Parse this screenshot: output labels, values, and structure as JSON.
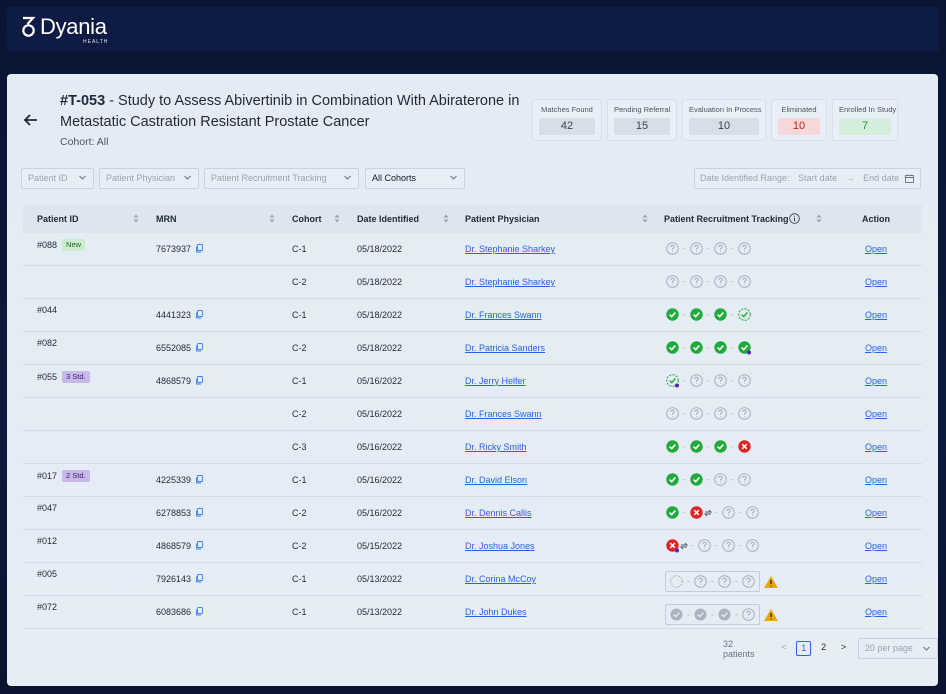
{
  "brand": {
    "name": "Dyania",
    "sub": "HEALTH"
  },
  "study": {
    "code": "#T-053",
    "title_rest": " - Study to Assess Abivertinib in Combination With Abiraterone in Metastatic Castration Resistant Prostate Cancer",
    "cohort_line": "Cohort: All"
  },
  "stats": [
    {
      "label": "Matches Found",
      "value": "42",
      "tone": "neutral"
    },
    {
      "label": "Pending Referral",
      "value": "15",
      "tone": "neutral"
    },
    {
      "label": "Evaluation In Process",
      "value": "10",
      "tone": "neutral"
    },
    {
      "label": "Eliminated",
      "value": "10",
      "tone": "red"
    },
    {
      "label": "Enrolled In Study",
      "value": "7",
      "tone": "green"
    }
  ],
  "filters": {
    "patient_id": "Patient ID",
    "physician": "Patient Physician",
    "tracking": "Patient Recruitment Tracking",
    "cohorts": "All Cohorts",
    "date_label": "Date Identified Range:",
    "start": "Start date",
    "arrow": "→",
    "end": "End date"
  },
  "columns": {
    "patient_id": "Patient ID",
    "mrn": "MRN",
    "cohort": "Cohort",
    "date": "Date Identified",
    "physician": "Patient Physician",
    "tracking": "Patient Recruitment Tracking",
    "action": "Action"
  },
  "rows": [
    {
      "pid": "#088",
      "badge": "New",
      "badge_type": "new",
      "mrn": "7673937",
      "cohort": "C-1",
      "date": "05/18/2022",
      "physician": "Dr. Stephanie Sharkey",
      "track": [
        "q",
        "q",
        "q",
        "q"
      ],
      "action": "Open"
    },
    {
      "pid": "",
      "badge": "",
      "badge_type": "",
      "mrn": "",
      "cohort": "C-2",
      "date": "05/18/2022",
      "physician": "Dr. Stephanie Sharkey",
      "track": [
        "q",
        "q",
        "q",
        "q"
      ],
      "action": "Open"
    },
    {
      "pid": "#044",
      "badge": "",
      "badge_type": "",
      "mrn": "4441323",
      "cohort": "C-1",
      "date": "05/18/2022",
      "physician": "Dr. Frances Swann",
      "track": [
        "ok",
        "ok",
        "ok",
        "okd"
      ],
      "action": "Open"
    },
    {
      "pid": "#082",
      "badge": "",
      "badge_type": "",
      "mrn": "6552085",
      "cohort": "C-2",
      "date": "05/18/2022",
      "physician": "Dr. Patricia Sanders",
      "track": [
        "ok",
        "ok",
        "ok",
        "okp"
      ],
      "action": "Open"
    },
    {
      "pid": "#055",
      "badge": "3 Std.",
      "badge_type": "std",
      "mrn": "4868579",
      "cohort": "C-1",
      "date": "05/16/2022",
      "physician": "Dr. Jerry Helfer",
      "track": [
        "okdp",
        "q",
        "q",
        "q"
      ],
      "action": "Open"
    },
    {
      "pid": "",
      "badge": "",
      "badge_type": "",
      "mrn": "",
      "cohort": "C-2",
      "date": "05/16/2022",
      "physician": "Dr. Frances Swann",
      "track": [
        "q",
        "q",
        "q",
        "q"
      ],
      "action": "Open"
    },
    {
      "pid": "",
      "badge": "",
      "badge_type": "",
      "mrn": "",
      "cohort": "C-3",
      "date": "05/16/2022",
      "physician": "Dr. Ricky Smith",
      "track": [
        "ok",
        "ok",
        "ok",
        "x"
      ],
      "action": "Open"
    },
    {
      "pid": "#017",
      "badge": "2 Std.",
      "badge_type": "std",
      "mrn": "4225339",
      "cohort": "C-1",
      "date": "05/16/2022",
      "physician": "Dr. David Elson",
      "track": [
        "ok",
        "ok",
        "q",
        "q"
      ],
      "action": "Open"
    },
    {
      "pid": "#047",
      "badge": "",
      "badge_type": "",
      "mrn": "6278853",
      "cohort": "C-2",
      "date": "05/16/2022",
      "physician": "Dr. Dennis Callis",
      "track": [
        "ok",
        "xs",
        "q",
        "q"
      ],
      "action": "Open"
    },
    {
      "pid": "#012",
      "badge": "",
      "badge_type": "",
      "mrn": "4868579",
      "cohort": "C-2",
      "date": "05/15/2022",
      "physician": "Dr. Joshua Jones",
      "track": [
        "xps",
        "q",
        "q",
        "q"
      ],
      "action": "Open"
    },
    {
      "pid": "#005",
      "badge": "",
      "badge_type": "",
      "mrn": "7926143",
      "cohort": "C-1",
      "date": "05/13/2022",
      "physician": "Dr. Corina McCoy",
      "track": [
        "boxq"
      ],
      "action": "Open"
    },
    {
      "pid": "#072",
      "badge": "",
      "badge_type": "",
      "mrn": "6083686",
      "cohort": "C-1",
      "date": "05/13/2022",
      "physician": "Dr. John Dukes",
      "track": [
        "boxg"
      ],
      "action": "Open"
    }
  ],
  "pagination": {
    "count": "32 patients",
    "prev": "<",
    "pages": [
      "1",
      "2"
    ],
    "current": "1",
    "next": ">",
    "per_page": "20 per page"
  },
  "colors": {
    "accent": "#2563eb",
    "ok": "#22a93c",
    "error": "#e02424",
    "pending": "#a7b0bd",
    "warning": "#e8a800",
    "purple": "#5b21b6"
  },
  "icons": {
    "back": "arrow-left-icon",
    "copy": "copy-icon",
    "sort": "sort-icon",
    "info": "info-icon",
    "calendar": "calendar-icon",
    "chevron": "chevron-down-icon",
    "warning": "warning-icon"
  }
}
